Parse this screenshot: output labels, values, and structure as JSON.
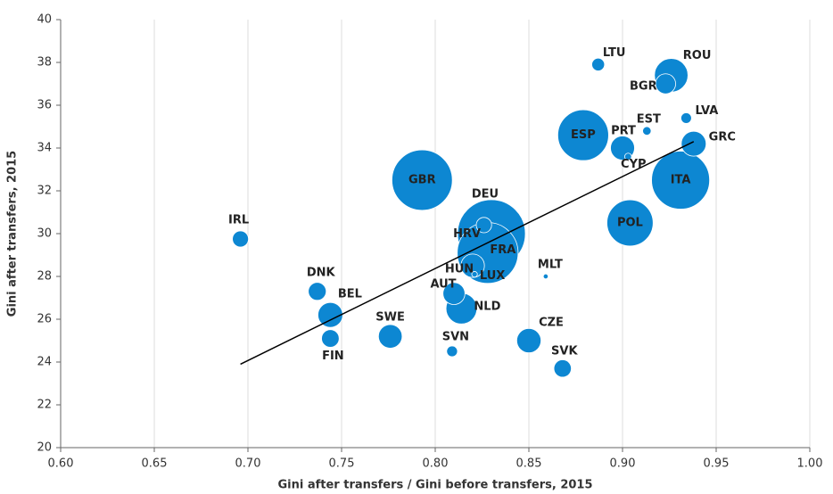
{
  "chart_data": {
    "type": "scatter",
    "x_label": "Gini after transfers / Gini before transfers, 2015",
    "y_label": "Gini after transfers, 2015",
    "color": "#0d87d2",
    "trend_color": "#000000",
    "xlim": [
      0.6,
      1.0
    ],
    "ylim": [
      20,
      40
    ],
    "xticks": [
      {
        "value": 0.6,
        "label": "0.60"
      },
      {
        "value": 0.65,
        "label": "0.65"
      },
      {
        "value": 0.7,
        "label": "0.70"
      },
      {
        "value": 0.75,
        "label": "0.75"
      },
      {
        "value": 0.8,
        "label": "0.80"
      },
      {
        "value": 0.85,
        "label": "0.85"
      },
      {
        "value": 0.9,
        "label": "0.90"
      },
      {
        "value": 0.95,
        "label": "0.95"
      },
      {
        "value": 1.0,
        "label": "1.00"
      }
    ],
    "yticks": [
      20,
      22,
      24,
      26,
      28,
      30,
      32,
      34,
      36,
      38,
      40
    ],
    "grid": "x",
    "labels": [
      "DEU",
      "GBR",
      "FRA",
      "ITA",
      "ESP",
      "POL",
      "ROU",
      "NLD",
      "BEL",
      "GRC",
      "CZE",
      "PRT",
      "SWE",
      "HUN",
      "AUT",
      "BGR",
      "DNK",
      "FIN",
      "SVK",
      "IRL",
      "HRV",
      "LTU",
      "SVN",
      "LVA",
      "EST",
      "CYP",
      "LUX",
      "MLT"
    ],
    "x": [
      0.83,
      0.793,
      0.828,
      0.931,
      0.879,
      0.904,
      0.926,
      0.814,
      0.744,
      0.938,
      0.85,
      0.9,
      0.776,
      0.82,
      0.81,
      0.923,
      0.737,
      0.744,
      0.868,
      0.696,
      0.826,
      0.887,
      0.809,
      0.934,
      0.913,
      0.903,
      0.821,
      0.859
    ],
    "y": [
      30.0,
      32.5,
      29.1,
      32.5,
      34.6,
      30.5,
      37.4,
      26.5,
      26.2,
      34.2,
      25.0,
      34.0,
      25.2,
      28.5,
      27.2,
      37.0,
      27.3,
      25.1,
      23.7,
      29.75,
      30.4,
      37.9,
      24.5,
      35.4,
      34.8,
      33.6,
      28.1,
      28.0
    ],
    "sizes": [
      82,
      65,
      66,
      60,
      46,
      38,
      20,
      17,
      11,
      11,
      10.5,
      10.3,
      10,
      9.8,
      8.6,
      7.2,
      5.7,
      5.5,
      5.4,
      4.6,
      4.2,
      2.9,
      2.1,
      2.0,
      1.3,
      0.85,
      0.56,
      0.43
    ],
    "trend": {
      "x": [
        0.696,
        0.938
      ],
      "y": [
        23.9,
        34.3
      ]
    }
  }
}
